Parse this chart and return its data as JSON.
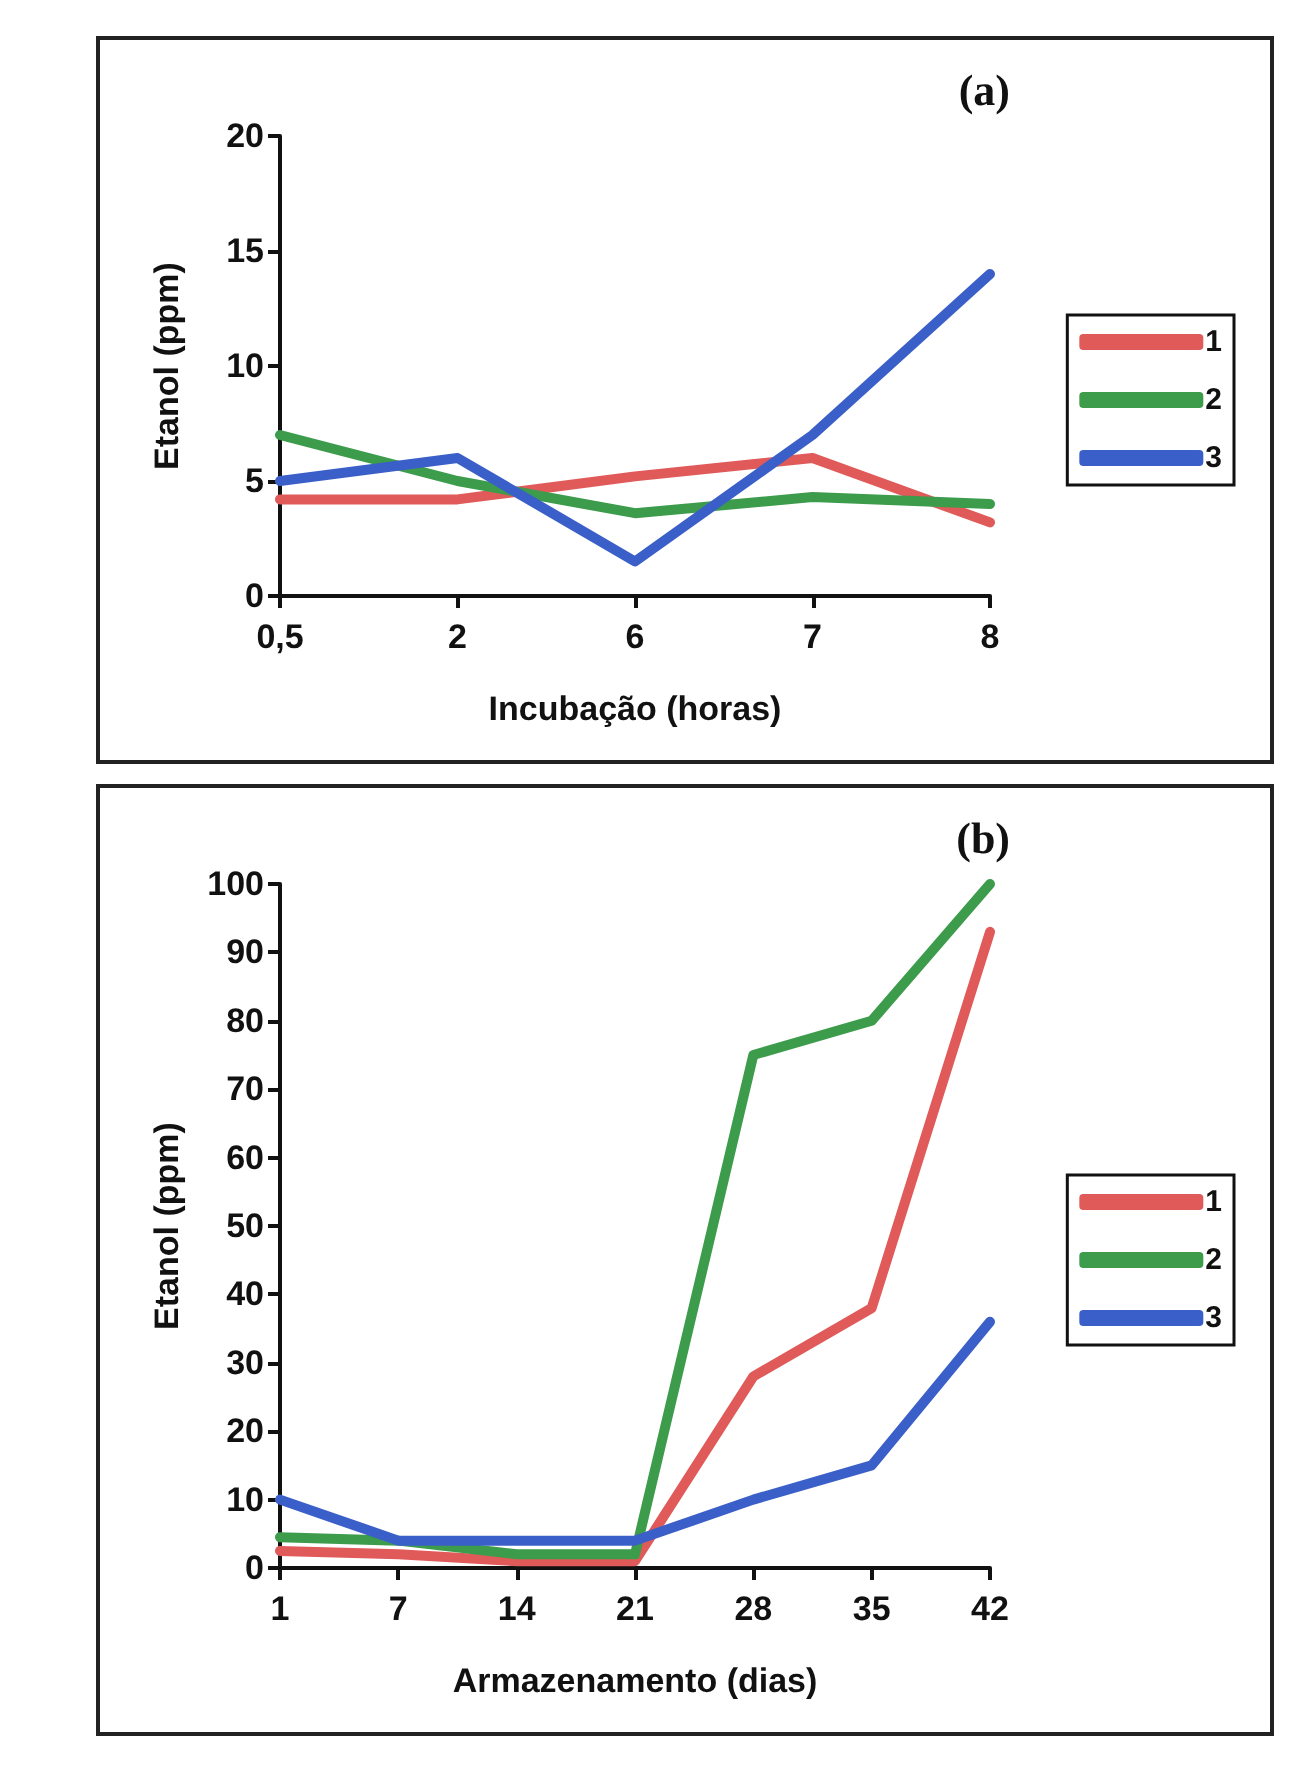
{
  "chart_data": [
    {
      "type": "line",
      "xlabel": "Incubação (horas)",
      "ylabel": "Etanol (ppm)",
      "annotations": [
        "(a)"
      ],
      "categories": [
        "0,5",
        "2",
        "6",
        "7",
        "8"
      ],
      "ylim": [
        0,
        20
      ],
      "yticks": [
        0,
        5,
        10,
        15,
        20
      ],
      "grid": false,
      "legend": "right",
      "marker": "none",
      "line_style": "solid",
      "series": [
        {
          "name": "1",
          "color": "#e05a5a",
          "values": [
            4.2,
            4.2,
            5.2,
            6,
            3.2
          ]
        },
        {
          "name": "2",
          "color": "#3c9c4c",
          "values": [
            7,
            5,
            3.6,
            4.3,
            4
          ]
        },
        {
          "name": "3",
          "color": "#3b5fc8",
          "values": [
            5,
            6,
            1.5,
            7,
            14
          ]
        }
      ]
    },
    {
      "type": "line",
      "xlabel": "Armazenamento (dias)",
      "ylabel": "Etanol (ppm)",
      "annotations": [
        "(b)"
      ],
      "categories": [
        "1",
        "7",
        "14",
        "21",
        "28",
        "35",
        "42"
      ],
      "ylim": [
        0,
        100
      ],
      "yticks": [
        0,
        10,
        20,
        30,
        40,
        50,
        60,
        70,
        80,
        90,
        100
      ],
      "grid": false,
      "legend": "right",
      "marker": "none",
      "line_style": "solid",
      "series": [
        {
          "name": "1",
          "color": "#e05a5a",
          "values": [
            2.5,
            2,
            1,
            1,
            28,
            38,
            93
          ]
        },
        {
          "name": "2",
          "color": "#3c9c4c",
          "values": [
            4.5,
            4,
            2,
            2,
            75,
            80,
            100
          ]
        },
        {
          "name": "3",
          "color": "#3b5fc8",
          "values": [
            10,
            4,
            4,
            4,
            10,
            15,
            36
          ]
        }
      ]
    }
  ]
}
